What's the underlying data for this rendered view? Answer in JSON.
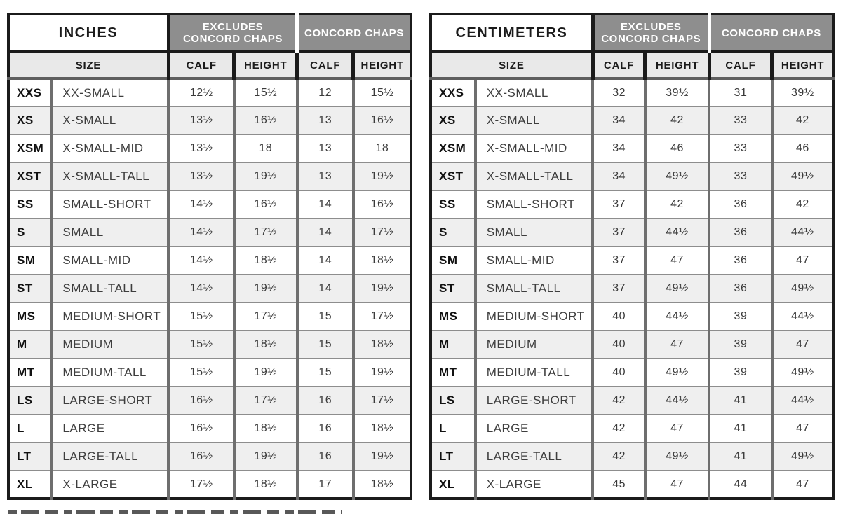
{
  "colors": {
    "structural_black": "#1b1b1b",
    "group_header_bg": "#8e8e8e",
    "group_header_text": "#ffffff",
    "subheader_bg": "#e9e9e9",
    "alt_row_bg": "#efefef",
    "grid_line_gray": "#6e6e6e",
    "row_line_gray": "#8d8d8d",
    "body_text": "#3a3a3a"
  },
  "tables": [
    {
      "unit_label": "INCHES",
      "group_headers": {
        "excludes_line1": "EXCLUDES",
        "excludes_line2": "CONCORD CHAPS",
        "concord": "CONCORD CHAPS"
      },
      "column_headers": {
        "size": "SIZE",
        "calf": "CALF",
        "height": "HEIGHT"
      }
    },
    {
      "unit_label": "CENTIMETERS",
      "group_headers": {
        "excludes_line1": "EXCLUDES",
        "excludes_line2": "CONCORD CHAPS",
        "concord": "CONCORD CHAPS"
      },
      "column_headers": {
        "size": "SIZE",
        "calf": "CALF",
        "height": "HEIGHT"
      }
    }
  ],
  "chart_data": [
    {
      "type": "table",
      "title": "INCHES",
      "column_groups": [
        "SIZE",
        "EXCLUDES CONCORD CHAPS",
        "CONCORD CHAPS"
      ],
      "columns": [
        "SIZE CODE",
        "SIZE NAME",
        "CALF (EXCLUDES CONCORD CHAPS)",
        "HEIGHT (EXCLUDES CONCORD CHAPS)",
        "CALF (CONCORD CHAPS)",
        "HEIGHT (CONCORD CHAPS)"
      ],
      "rows": [
        [
          "XXS",
          "XX-SMALL",
          "12½",
          "15½",
          "12",
          "15½"
        ],
        [
          "XS",
          "X-SMALL",
          "13½",
          "16½",
          "13",
          "16½"
        ],
        [
          "XSM",
          "X-SMALL-MID",
          "13½",
          "18",
          "13",
          "18"
        ],
        [
          "XST",
          "X-SMALL-TALL",
          "13½",
          "19½",
          "13",
          "19½"
        ],
        [
          "SS",
          "SMALL-SHORT",
          "14½",
          "16½",
          "14",
          "16½"
        ],
        [
          "S",
          "SMALL",
          "14½",
          "17½",
          "14",
          "17½"
        ],
        [
          "SM",
          "SMALL-MID",
          "14½",
          "18½",
          "14",
          "18½"
        ],
        [
          "ST",
          "SMALL-TALL",
          "14½",
          "19½",
          "14",
          "19½"
        ],
        [
          "MS",
          "MEDIUM-SHORT",
          "15½",
          "17½",
          "15",
          "17½"
        ],
        [
          "M",
          "MEDIUM",
          "15½",
          "18½",
          "15",
          "18½"
        ],
        [
          "MT",
          "MEDIUM-TALL",
          "15½",
          "19½",
          "15",
          "19½"
        ],
        [
          "LS",
          "LARGE-SHORT",
          "16½",
          "17½",
          "16",
          "17½"
        ],
        [
          "L",
          "LARGE",
          "16½",
          "18½",
          "16",
          "18½"
        ],
        [
          "LT",
          "LARGE-TALL",
          "16½",
          "19½",
          "16",
          "19½"
        ],
        [
          "XL",
          "X-LARGE",
          "17½",
          "18½",
          "17",
          "18½"
        ]
      ]
    },
    {
      "type": "table",
      "title": "CENTIMETERS",
      "column_groups": [
        "SIZE",
        "EXCLUDES CONCORD CHAPS",
        "CONCORD CHAPS"
      ],
      "columns": [
        "SIZE CODE",
        "SIZE NAME",
        "CALF (EXCLUDES CONCORD CHAPS)",
        "HEIGHT (EXCLUDES CONCORD CHAPS)",
        "CALF (CONCORD CHAPS)",
        "HEIGHT (CONCORD CHAPS)"
      ],
      "rows": [
        [
          "XXS",
          "XX-SMALL",
          "32",
          "39½",
          "31",
          "39½"
        ],
        [
          "XS",
          "X-SMALL",
          "34",
          "42",
          "33",
          "42"
        ],
        [
          "XSM",
          "X-SMALL-MID",
          "34",
          "46",
          "33",
          "46"
        ],
        [
          "XST",
          "X-SMALL-TALL",
          "34",
          "49½",
          "33",
          "49½"
        ],
        [
          "SS",
          "SMALL-SHORT",
          "37",
          "42",
          "36",
          "42"
        ],
        [
          "S",
          "SMALL",
          "37",
          "44½",
          "36",
          "44½"
        ],
        [
          "SM",
          "SMALL-MID",
          "37",
          "47",
          "36",
          "47"
        ],
        [
          "ST",
          "SMALL-TALL",
          "37",
          "49½",
          "36",
          "49½"
        ],
        [
          "MS",
          "MEDIUM-SHORT",
          "40",
          "44½",
          "39",
          "44½"
        ],
        [
          "M",
          "MEDIUM",
          "40",
          "47",
          "39",
          "47"
        ],
        [
          "MT",
          "MEDIUM-TALL",
          "40",
          "49½",
          "39",
          "49½"
        ],
        [
          "LS",
          "LARGE-SHORT",
          "42",
          "44½",
          "41",
          "44½"
        ],
        [
          "L",
          "LARGE",
          "42",
          "47",
          "41",
          "47"
        ],
        [
          "LT",
          "LARGE-TALL",
          "42",
          "49½",
          "41",
          "49½"
        ],
        [
          "XL",
          "X-LARGE",
          "45",
          "47",
          "44",
          "47"
        ]
      ]
    }
  ]
}
